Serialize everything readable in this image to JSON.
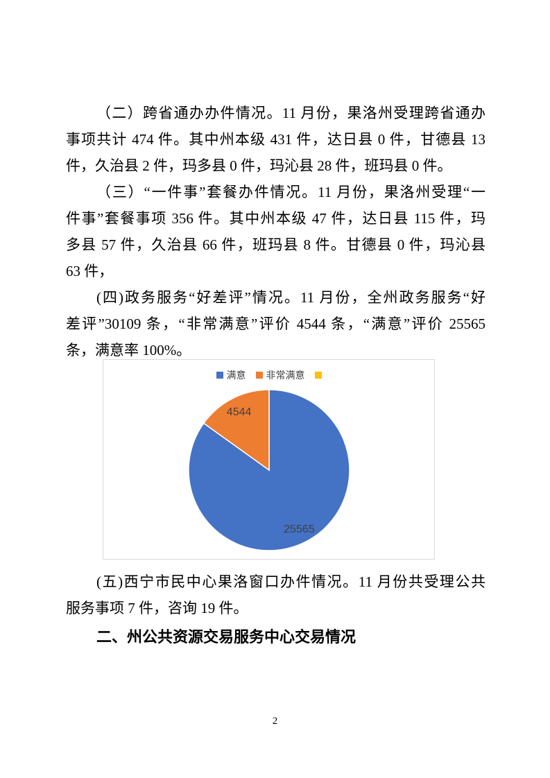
{
  "page": {
    "number": "2"
  },
  "body": {
    "before_chart": [
      {
        "lines": [
          "（二）跨省通办办件情况。11 月份，果洛州受理跨省通办",
          "事项共计 474 件。其中州本级 431 件，达日县 0 件，甘德县 13",
          "件，久治县 2 件，玛多县 0 件，玛沁县 28 件，班玛县 0 件。"
        ]
      },
      {
        "lines": [
          "（三）“一件事”套餐办件情况。11 月份，果洛州受理“一",
          "件事”套餐事项 356 件。其中州本级 47 件，达日县 115 件，玛",
          "多县 57 件，久治县 66 件，班玛县 8 件。甘德县 0 件，玛沁县",
          "63 件，"
        ]
      },
      {
        "lines": [
          "(四)政务服务“好差评”情况。11 月份，全州政务服务“好",
          "差评”30109 条，“非常满意”评价 4544 条，“满意”评价 25565",
          "条，满意率 100%。"
        ]
      }
    ],
    "after_chart": [
      {
        "lines": [
          "(五)西宁市民中心果洛窗口办件情况。11 月份共受理公共",
          "服务事项 7 件，咨询 19 件。"
        ]
      }
    ]
  },
  "heading": "二、州公共资源交易服务中心交易情况",
  "chart_data": {
    "type": "pie",
    "title": "",
    "categories": [
      "满意",
      "非常满意"
    ],
    "values": [
      25565,
      4544
    ],
    "colors": [
      "#4472C4",
      "#ED7D31"
    ],
    "data_labels": [
      "25565",
      "4544"
    ],
    "total": 30109,
    "start_angle_deg": 0,
    "clockwise": true,
    "legend": {
      "position": "top",
      "entries": [
        {
          "label": "满意",
          "color": "#4472C4"
        },
        {
          "label": "非常满意",
          "color": "#ED7D31"
        },
        {
          "label": "",
          "color": "#FFC000"
        }
      ]
    },
    "data_label_color": "#404040",
    "frame_border_color": "#D9D9D9"
  }
}
